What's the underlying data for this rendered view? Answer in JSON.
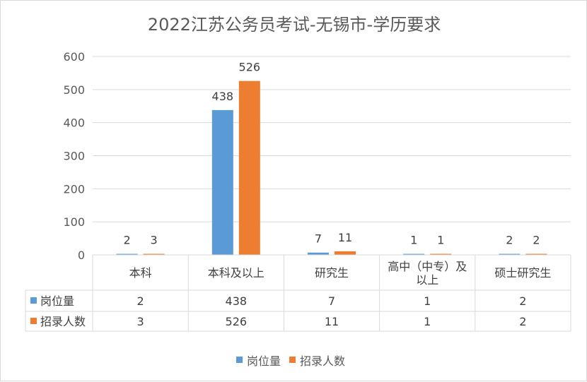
{
  "chart_data": {
    "type": "bar",
    "title": "2022江苏公务员考试-无锡市-学历要求",
    "categories": [
      "本科",
      "本科及以上",
      "研究生",
      "高中（中专）及以上",
      "硕士研究生"
    ],
    "category_lines": [
      [
        "本科"
      ],
      [
        "本科及以上"
      ],
      [
        "研究生"
      ],
      [
        "高中（中专）及",
        "以上"
      ],
      [
        "硕士研究生"
      ]
    ],
    "series": [
      {
        "name": "岗位量",
        "values": [
          2,
          438,
          7,
          1,
          2
        ],
        "labels": [
          "2",
          "438",
          "7",
          "1",
          "2"
        ],
        "color": "#5b9bd5"
      },
      {
        "name": "招录人数",
        "values": [
          3,
          526,
          11,
          1,
          2
        ],
        "labels": [
          "3",
          "526",
          "11",
          "1",
          "2"
        ],
        "color": "#ed7d31"
      }
    ],
    "ylim": [
      0,
      600
    ],
    "yticks": [
      0,
      100,
      200,
      300,
      400,
      500,
      600
    ],
    "ytick_labels": [
      "0",
      "100",
      "200",
      "300",
      "400",
      "500",
      "600"
    ],
    "grid": true,
    "legend": "bottom",
    "data_table": true
  },
  "colors": {
    "grid": "#d9d9d9",
    "text": "#595959"
  }
}
